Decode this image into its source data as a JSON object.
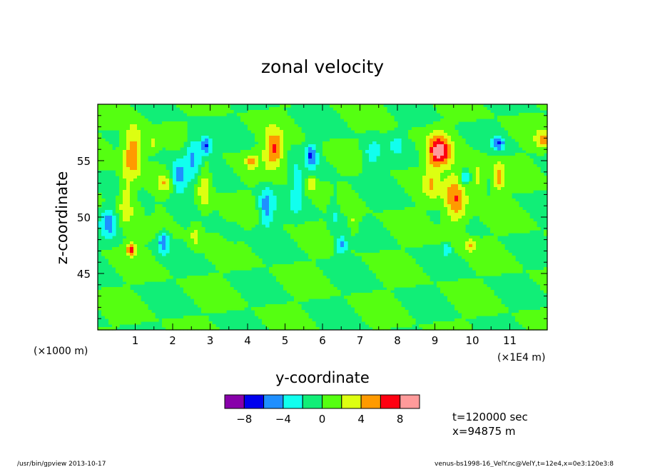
{
  "chart_data": {
    "type": "heatmap",
    "title": "zonal velocity",
    "xlabel": "y-coordinate",
    "ylabel": "z-coordinate",
    "x_unit_left": "(×1000 m)",
    "x_unit_right": "(×1E4 m)",
    "xlim": [
      0,
      12
    ],
    "ylim": [
      40,
      60
    ],
    "x_ticks": [
      "1",
      "2",
      "3",
      "4",
      "5",
      "6",
      "7",
      "8",
      "9",
      "10",
      "11"
    ],
    "y_ticks": [
      "45",
      "50",
      "55"
    ],
    "colorbar": {
      "levels": [
        -10,
        -8,
        -6,
        -4,
        -2,
        0,
        2,
        4,
        6,
        8,
        10
      ],
      "tick_labels": [
        "-8",
        "-4",
        "0",
        "4",
        "8"
      ],
      "colors": [
        "#8800aa",
        "#0000ee",
        "#1f8fff",
        "#11ffee",
        "#11ee77",
        "#55ff11",
        "#ddff11",
        "#ff9a00",
        "#ff0011",
        "#ff9a9a"
      ]
    },
    "background_color": "#11ee77",
    "features": [
      {
        "y": 0.95,
        "z": 55.8,
        "sx": 0.25,
        "sz": 2.2,
        "v": 6.5
      },
      {
        "y": 0.75,
        "z": 51.5,
        "sx": 0.2,
        "sz": 2.5,
        "v": 3.5
      },
      {
        "y": 0.3,
        "z": 49.5,
        "sx": 0.2,
        "sz": 1.2,
        "v": -4.5
      },
      {
        "y": 0.9,
        "z": 47.2,
        "sx": 0.12,
        "sz": 0.6,
        "v": 7
      },
      {
        "y": 1.45,
        "z": 56.5,
        "sx": 0.15,
        "sz": 0.8,
        "v": 3
      },
      {
        "y": 1.35,
        "z": 50.6,
        "sx": 0.12,
        "sz": 0.6,
        "v": -2.5
      },
      {
        "y": 1.75,
        "z": 47.8,
        "sx": 0.15,
        "sz": 1.0,
        "v": -5.5
      },
      {
        "y": 1.8,
        "z": 53.0,
        "sx": 0.2,
        "sz": 0.8,
        "v": 3.5
      },
      {
        "y": 2.15,
        "z": 53.5,
        "sx": 0.25,
        "sz": 1.6,
        "v": -5.5
      },
      {
        "y": 2.55,
        "z": 55.5,
        "sx": 0.22,
        "sz": 1.8,
        "v": -4.5
      },
      {
        "y": 2.9,
        "z": 56.3,
        "sx": 0.15,
        "sz": 0.8,
        "v": -6.5
      },
      {
        "y": 2.85,
        "z": 52.5,
        "sx": 0.18,
        "sz": 2.2,
        "v": 4
      },
      {
        "y": 2.6,
        "z": 48.5,
        "sx": 0.15,
        "sz": 1.2,
        "v": 3
      },
      {
        "y": 3.6,
        "z": 48.5,
        "sx": 0.2,
        "sz": 0.8,
        "v": -2
      },
      {
        "y": 4.1,
        "z": 55.0,
        "sx": 0.15,
        "sz": 0.6,
        "v": 4
      },
      {
        "y": 4.7,
        "z": 56.0,
        "sx": 0.25,
        "sz": 1.5,
        "v": 6.5
      },
      {
        "y": 4.5,
        "z": 50.8,
        "sx": 0.2,
        "sz": 1.8,
        "v": -5
      },
      {
        "y": 5.3,
        "z": 52.5,
        "sx": 0.15,
        "sz": 2.0,
        "v": -3
      },
      {
        "y": 5.7,
        "z": 55.5,
        "sx": 0.15,
        "sz": 1.0,
        "v": -6
      },
      {
        "y": 5.7,
        "z": 53.0,
        "sx": 0.12,
        "sz": 0.6,
        "v": 4
      },
      {
        "y": 6.3,
        "z": 50.5,
        "sx": 0.15,
        "sz": 2.0,
        "v": -2.5
      },
      {
        "y": 6.5,
        "z": 47.5,
        "sx": 0.15,
        "sz": 0.8,
        "v": -5
      },
      {
        "y": 6.85,
        "z": 49.5,
        "sx": 0.12,
        "sz": 1.0,
        "v": 3
      },
      {
        "y": 7.3,
        "z": 55.5,
        "sx": 0.25,
        "sz": 1.4,
        "v": -3
      },
      {
        "y": 8.0,
        "z": 56.5,
        "sx": 0.15,
        "sz": 0.8,
        "v": -2.5
      },
      {
        "y": 9.1,
        "z": 55.8,
        "sx": 0.3,
        "sz": 1.4,
        "v": 8.5
      },
      {
        "y": 9.55,
        "z": 51.5,
        "sx": 0.3,
        "sz": 2.5,
        "v": 6
      },
      {
        "y": 8.9,
        "z": 53.0,
        "sx": 0.2,
        "sz": 1.5,
        "v": 3
      },
      {
        "y": 9.8,
        "z": 53.5,
        "sx": 0.12,
        "sz": 0.6,
        "v": -5
      },
      {
        "y": 10.15,
        "z": 53.5,
        "sx": 0.2,
        "sz": 1.5,
        "v": 3.5
      },
      {
        "y": 9.95,
        "z": 47.5,
        "sx": 0.15,
        "sz": 0.6,
        "v": 3.5
      },
      {
        "y": 9.3,
        "z": 47.2,
        "sx": 0.12,
        "sz": 0.5,
        "v": -3.5
      },
      {
        "y": 10.7,
        "z": 56.5,
        "sx": 0.15,
        "sz": 0.6,
        "v": -5.5
      },
      {
        "y": 10.7,
        "z": 53.5,
        "sx": 0.15,
        "sz": 1.2,
        "v": 5
      },
      {
        "y": 11.9,
        "z": 56.8,
        "sx": 0.2,
        "sz": 0.8,
        "v": 4
      }
    ]
  },
  "info": {
    "time": "t=120000 sec",
    "xpos": "x=94875 m"
  },
  "footer": {
    "left": "/usr/bin/gpview  2013-10-17",
    "right": "venus-bs1998-16_VelY.nc@VelY,t=12e4,x=0e3:120e3:8"
  }
}
